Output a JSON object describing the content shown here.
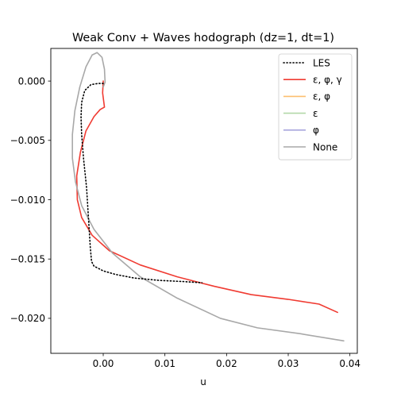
{
  "chart_data": {
    "type": "line",
    "title": "Weak Conv + Waves hodograph (dz=1, dt=1)",
    "xlabel": "u",
    "ylabel": "",
    "xlim": [
      -0.0085,
      0.0412
    ],
    "ylim": [
      -0.02295,
      0.00275
    ],
    "x_ticks": [
      0.0,
      0.01,
      0.02,
      0.03,
      0.04
    ],
    "x_tick_labels": [
      "0.00",
      "0.01",
      "0.02",
      "0.03",
      "0.04"
    ],
    "y_ticks": [
      0.0,
      -0.005,
      -0.01,
      -0.015,
      -0.02
    ],
    "y_tick_labels": [
      "0.000",
      "−0.005",
      "−0.010",
      "−0.015",
      "−0.020"
    ],
    "grid": false,
    "legend_position": "top-right",
    "series": [
      {
        "name": "LES",
        "color": "#000000",
        "style": "dotted",
        "points": [
          [
            0.0,
            -0.0002
          ],
          [
            -0.0008,
            -0.0002
          ],
          [
            -0.002,
            -0.0003
          ],
          [
            -0.003,
            -0.0008
          ],
          [
            -0.0035,
            -0.0018
          ],
          [
            -0.0036,
            -0.003
          ],
          [
            -0.0035,
            -0.0045
          ],
          [
            -0.0032,
            -0.0065
          ],
          [
            -0.0027,
            -0.009
          ],
          [
            -0.0024,
            -0.0115
          ],
          [
            -0.0021,
            -0.014
          ],
          [
            -0.0019,
            -0.0152
          ],
          [
            -0.0015,
            -0.0156
          ],
          [
            0.0,
            -0.016
          ],
          [
            0.002,
            -0.0163
          ],
          [
            0.005,
            -0.0166
          ],
          [
            0.009,
            -0.0168
          ],
          [
            0.013,
            -0.0169
          ],
          [
            0.016,
            -0.017
          ]
        ]
      },
      {
        "name": "ε, φ, γ",
        "color": "#f03b32",
        "style": "solid",
        "points": [
          [
            0.0,
            0.0
          ],
          [
            -0.0001,
            -0.001
          ],
          [
            0.0002,
            -0.0022
          ],
          [
            -0.0005,
            -0.0024
          ],
          [
            -0.0015,
            -0.003
          ],
          [
            -0.0028,
            -0.0042
          ],
          [
            -0.0037,
            -0.006
          ],
          [
            -0.0043,
            -0.008
          ],
          [
            -0.0042,
            -0.01
          ],
          [
            -0.0035,
            -0.0115
          ],
          [
            -0.0018,
            -0.013
          ],
          [
            0.001,
            -0.0143
          ],
          [
            0.006,
            -0.0155
          ],
          [
            0.012,
            -0.0165
          ],
          [
            0.018,
            -0.0173
          ],
          [
            0.024,
            -0.018
          ],
          [
            0.03,
            -0.0184
          ],
          [
            0.035,
            -0.0188
          ],
          [
            0.038,
            -0.0195
          ]
        ]
      },
      {
        "name": "ε, φ",
        "color": "#fdbf6f",
        "style": "solid",
        "points": []
      },
      {
        "name": "ε",
        "color": "#b2d8a8",
        "style": "solid",
        "points": []
      },
      {
        "name": "φ",
        "color": "#a9a6de",
        "style": "solid",
        "points": []
      },
      {
        "name": "None",
        "color": "#a8a8a8",
        "style": "solid",
        "points": [
          [
            0.0,
            -0.0005
          ],
          [
            0.0003,
            -0.0001
          ],
          [
            0.0002,
            0.001
          ],
          [
            -0.0002,
            0.002
          ],
          [
            -0.001,
            0.0024
          ],
          [
            -0.0018,
            0.0022
          ],
          [
            -0.0028,
            0.0012
          ],
          [
            -0.0038,
            -0.0005
          ],
          [
            -0.0046,
            -0.0025
          ],
          [
            -0.005,
            -0.0045
          ],
          [
            -0.005,
            -0.0065
          ],
          [
            -0.0045,
            -0.0085
          ],
          [
            -0.0035,
            -0.0105
          ],
          [
            -0.0015,
            -0.0125
          ],
          [
            0.0015,
            -0.0145
          ],
          [
            0.006,
            -0.0165
          ],
          [
            0.012,
            -0.0183
          ],
          [
            0.019,
            -0.02
          ],
          [
            0.025,
            -0.0208
          ],
          [
            0.032,
            -0.0213
          ],
          [
            0.039,
            -0.0219
          ]
        ]
      }
    ]
  }
}
